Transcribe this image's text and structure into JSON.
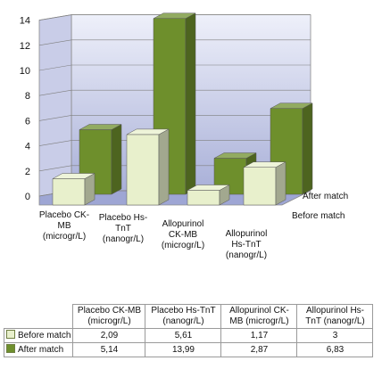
{
  "chart_data": {
    "type": "bar",
    "style": "3d-grouped-columns",
    "categories": [
      "Placebo CK-\nMB\n(microgr/L)",
      "Placebo Hs-\nTnT\n(nanogr/L)",
      "Allopurinol\nCK-MB\n(microgr/L)",
      "Allopurinol\nHs-TnT\n(nanogr/L)"
    ],
    "table_headers": [
      "Placebo CK-MB\n(microgr/L)",
      "Placebo Hs-TnT\n(nanogr/L)",
      "Allopurinol CK-\nMB (microgr/L)",
      "Allopurinol Hs-\nTnT (nanogr/L)"
    ],
    "series": [
      {
        "name": "Before match",
        "values": [
          2.09,
          5.61,
          1.17,
          3
        ],
        "labels": [
          "2,09",
          "5,61",
          "1,17",
          "3"
        ],
        "color": "#e8f0cc"
      },
      {
        "name": "After match",
        "values": [
          5.14,
          13.99,
          2.87,
          6.83
        ],
        "labels": [
          "5,14",
          "13,99",
          "2,87",
          "6,83"
        ],
        "color": "#6e8f2c"
      }
    ],
    "y_ticks": [
      "0",
      "2",
      "4",
      "6",
      "8",
      "10",
      "12",
      "14"
    ],
    "ylim": [
      0,
      14
    ],
    "grid": true,
    "legend_placement": "data table below chart",
    "wall_color": "#a9b0d8"
  }
}
